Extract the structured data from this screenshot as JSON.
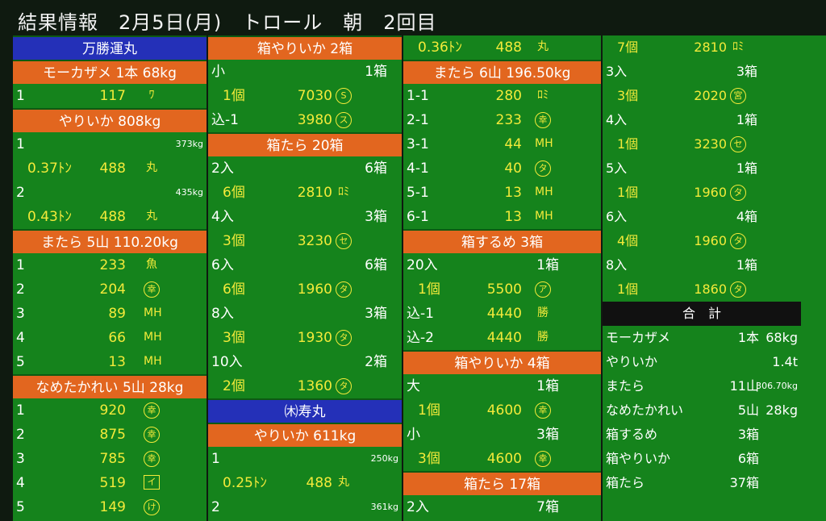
{
  "header": {
    "title": "結果情報　2月5日(月)　トロール　朝　2回目"
  },
  "col1": [
    {
      "t": "boat",
      "label": "万勝運丸"
    },
    {
      "t": "head",
      "label": "モーカザメ 1本 68kg"
    },
    {
      "t": "d",
      "a": "1",
      "b": "117",
      "m": "ﾜ",
      "mc": "plain"
    },
    {
      "t": "head",
      "label": "やりいか 808kg"
    },
    {
      "t": "s",
      "a": "1",
      "r": "373kg"
    },
    {
      "t": "d",
      "a": "0.37ﾄﾝ",
      "b": "488",
      "m": "丸",
      "mc": "plain",
      "ind": true
    },
    {
      "t": "s",
      "a": "2",
      "r": "435kg"
    },
    {
      "t": "d",
      "a": "0.43ﾄﾝ",
      "b": "488",
      "m": "丸",
      "mc": "plain",
      "ind": true
    },
    {
      "t": "head",
      "label": "またら 5山 110.20kg"
    },
    {
      "t": "d",
      "a": "1",
      "b": "233",
      "m": "魚",
      "mc": "plain"
    },
    {
      "t": "d",
      "a": "2",
      "b": "204",
      "m": "幸",
      "mc": "circ"
    },
    {
      "t": "d",
      "a": "3",
      "b": "89",
      "m": "MH",
      "mc": "plain"
    },
    {
      "t": "d",
      "a": "4",
      "b": "66",
      "m": "MH",
      "mc": "plain"
    },
    {
      "t": "d",
      "a": "5",
      "b": "13",
      "m": "MH",
      "mc": "plain"
    },
    {
      "t": "head",
      "label": "なめたかれい 5山 28kg"
    },
    {
      "t": "d",
      "a": "1",
      "b": "920",
      "m": "幸",
      "mc": "circ"
    },
    {
      "t": "d",
      "a": "2",
      "b": "875",
      "m": "幸",
      "mc": "circ"
    },
    {
      "t": "d",
      "a": "3",
      "b": "785",
      "m": "幸",
      "mc": "circ"
    },
    {
      "t": "d",
      "a": "4",
      "b": "519",
      "m": "イ",
      "mc": "sq"
    },
    {
      "t": "d",
      "a": "5",
      "b": "149",
      "m": "け",
      "mc": "circ"
    }
  ],
  "col2": [
    {
      "t": "head",
      "label": "箱やりいか 2箱"
    },
    {
      "t": "q",
      "a": "小",
      "c": "1箱"
    },
    {
      "t": "d",
      "a": "1個",
      "b": "7030",
      "m": "S",
      "mc": "circ",
      "ind": true
    },
    {
      "t": "d",
      "a": "込-1",
      "b": "3980",
      "m": "ス",
      "mc": "circ"
    },
    {
      "t": "head",
      "label": "箱たら 20箱"
    },
    {
      "t": "q",
      "a": "2入",
      "c": "6箱"
    },
    {
      "t": "d",
      "a": "6個",
      "b": "2810",
      "m": "ﾛﾐ",
      "mc": "plain",
      "ind": true
    },
    {
      "t": "q",
      "a": "4入",
      "c": "3箱"
    },
    {
      "t": "d",
      "a": "3個",
      "b": "3230",
      "m": "セ",
      "mc": "circ",
      "ind": true
    },
    {
      "t": "q",
      "a": "6入",
      "c": "6箱"
    },
    {
      "t": "d",
      "a": "6個",
      "b": "1960",
      "m": "タ",
      "mc": "circ",
      "ind": true
    },
    {
      "t": "q",
      "a": "8入",
      "c": "3箱"
    },
    {
      "t": "d",
      "a": "3個",
      "b": "1930",
      "m": "タ",
      "mc": "circ",
      "ind": true
    },
    {
      "t": "q",
      "a": "10入",
      "c": "2箱"
    },
    {
      "t": "d",
      "a": "2個",
      "b": "1360",
      "m": "タ",
      "mc": "circ",
      "ind": true
    },
    {
      "t": "boat",
      "label": "㈭寿丸"
    },
    {
      "t": "head",
      "label": "やりいか 611kg"
    },
    {
      "t": "s",
      "a": "1",
      "r": "250kg"
    },
    {
      "t": "d",
      "a": "0.25ﾄﾝ",
      "b": "488",
      "m": "丸",
      "mc": "plain",
      "ind": true
    },
    {
      "t": "s",
      "a": "2",
      "r": "361kg"
    }
  ],
  "col3": [
    {
      "t": "d",
      "a": "0.36ﾄﾝ",
      "b": "488",
      "m": "丸",
      "mc": "plain",
      "ind": true
    },
    {
      "t": "head",
      "label": "またら 6山 196.50kg"
    },
    {
      "t": "d",
      "a": "1-1",
      "b": "280",
      "m": "ﾛﾐ",
      "mc": "plain"
    },
    {
      "t": "d",
      "a": "2-1",
      "b": "233",
      "m": "幸",
      "mc": "circ"
    },
    {
      "t": "d",
      "a": "3-1",
      "b": "44",
      "m": "MH",
      "mc": "plain"
    },
    {
      "t": "d",
      "a": "4-1",
      "b": "40",
      "m": "タ",
      "mc": "circ"
    },
    {
      "t": "d",
      "a": "5-1",
      "b": "13",
      "m": "MH",
      "mc": "plain"
    },
    {
      "t": "d",
      "a": "6-1",
      "b": "13",
      "m": "MH",
      "mc": "plain"
    },
    {
      "t": "head",
      "label": "箱するめ 3箱"
    },
    {
      "t": "q",
      "a": "20入",
      "c": "1箱"
    },
    {
      "t": "d",
      "a": "1個",
      "b": "5500",
      "m": "ア",
      "mc": "circ",
      "ind": true
    },
    {
      "t": "d",
      "a": "込-1",
      "b": "4440",
      "m": "勝",
      "mc": "plain"
    },
    {
      "t": "d",
      "a": "込-2",
      "b": "4440",
      "m": "勝",
      "mc": "plain"
    },
    {
      "t": "head",
      "label": "箱やりいか 4箱"
    },
    {
      "t": "q",
      "a": "大",
      "c": "1箱"
    },
    {
      "t": "d",
      "a": "1個",
      "b": "4600",
      "m": "幸",
      "mc": "circ",
      "ind": true
    },
    {
      "t": "q",
      "a": "小",
      "c": "3箱"
    },
    {
      "t": "d",
      "a": "3個",
      "b": "4600",
      "m": "幸",
      "mc": "circ",
      "ind": true
    },
    {
      "t": "head",
      "label": "箱たら 17箱"
    },
    {
      "t": "q",
      "a": "2入",
      "c": "7箱"
    }
  ],
  "col4": [
    {
      "t": "d",
      "a": "7個",
      "b": "2810",
      "m": "ﾛﾐ",
      "mc": "plain",
      "ind": true
    },
    {
      "t": "q",
      "a": "3入",
      "c": "3箱"
    },
    {
      "t": "d",
      "a": "3個",
      "b": "2020",
      "m": "宮",
      "mc": "circ",
      "ind": true
    },
    {
      "t": "q",
      "a": "4入",
      "c": "1箱"
    },
    {
      "t": "d",
      "a": "1個",
      "b": "3230",
      "m": "セ",
      "mc": "circ",
      "ind": true
    },
    {
      "t": "q",
      "a": "5入",
      "c": "1箱"
    },
    {
      "t": "d",
      "a": "1個",
      "b": "1960",
      "m": "タ",
      "mc": "circ",
      "ind": true
    },
    {
      "t": "q",
      "a": "6入",
      "c": "4箱"
    },
    {
      "t": "d",
      "a": "4個",
      "b": "1960",
      "m": "タ",
      "mc": "circ",
      "ind": true
    },
    {
      "t": "q",
      "a": "8入",
      "c": "1箱"
    },
    {
      "t": "d",
      "a": "1個",
      "b": "1860",
      "m": "タ",
      "mc": "circ",
      "ind": true
    },
    {
      "t": "total",
      "label": "合　計"
    },
    {
      "t": "tot",
      "a": "モーカザメ",
      "c": "1本",
      "r": "68kg"
    },
    {
      "t": "tot",
      "a": "やりいか",
      "r": "1.4t"
    },
    {
      "t": "tot",
      "a": "またら",
      "c": "11山",
      "r": "306.70kg",
      "rs": true
    },
    {
      "t": "tot",
      "a": "なめたかれい",
      "c": "5山",
      "r": "28kg"
    },
    {
      "t": "tot",
      "a": "箱するめ",
      "c": "3箱"
    },
    {
      "t": "tot",
      "a": "箱やりいか",
      "c": "6箱"
    },
    {
      "t": "tot",
      "a": "箱たら",
      "c": "37箱"
    }
  ]
}
